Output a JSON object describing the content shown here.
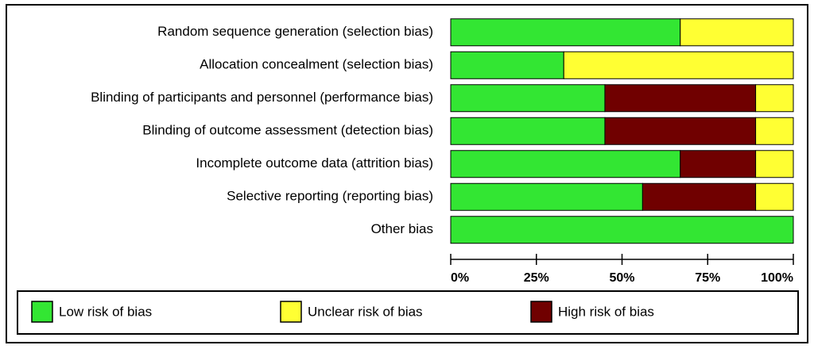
{
  "chart_data": {
    "type": "stacked-barh",
    "categories": [
      "Random sequence generation (selection bias)",
      "Allocation concealment (selection bias)",
      "Blinding of participants and personnel (performance bias)",
      "Blinding of outcome assessment (detection bias)",
      "Incomplete outcome data (attrition bias)",
      "Selective reporting (reporting bias)",
      "Other bias"
    ],
    "series": [
      {
        "name": "Low risk of bias",
        "color": "#33e633",
        "values": [
          67,
          33,
          45,
          45,
          67,
          56,
          100
        ]
      },
      {
        "name": "Unclear risk of bias",
        "color": "#ffff33",
        "values": [
          33,
          67,
          11,
          11,
          11,
          11,
          0
        ]
      },
      {
        "name": "High risk of bias",
        "color": "#700000",
        "values": [
          0,
          0,
          44,
          44,
          22,
          33,
          0
        ]
      }
    ],
    "xlim": [
      0,
      100
    ],
    "xticks": [
      {
        "value": 0,
        "label": "0%"
      },
      {
        "value": 25,
        "label": "25%"
      },
      {
        "value": 50,
        "label": "50%"
      },
      {
        "value": 75,
        "label": "75%"
      },
      {
        "value": 100,
        "label": "100%"
      }
    ]
  }
}
